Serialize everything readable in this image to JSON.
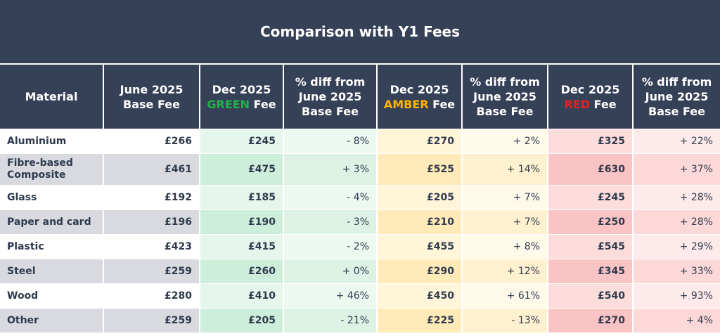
{
  "title": "Comparison with Y1 Fees",
  "headers": {
    "material": "Material",
    "june_base_line1": "June 2025",
    "june_base_line2": "Base Fee",
    "dec_line1": "Dec 2025",
    "green_word": "GREEN",
    "amber_word": "AMBER",
    "red_word": "RED",
    "fee_suffix": " Fee",
    "diff_line1": "% diff from",
    "diff_line2": "June 2025",
    "diff_line3": "Base Fee"
  },
  "colors": {
    "header_bg": "#354157",
    "green": "#22b14c",
    "amber": "#ffb400",
    "red": "#e8201e"
  },
  "rows": [
    {
      "material": "Aluminium",
      "base": "£266",
      "green": "£245",
      "green_diff": "- 8%",
      "amber": "£270",
      "amber_diff": "+ 2%",
      "red": "£325",
      "red_diff": "+ 22%"
    },
    {
      "material": "Fibre-based Composite",
      "base": "£461",
      "green": "£475",
      "green_diff": "+ 3%",
      "amber": "£525",
      "amber_diff": "+ 14%",
      "red": "£630",
      "red_diff": "+ 37%"
    },
    {
      "material": "Glass",
      "base": "£192",
      "green": "£185",
      "green_diff": "- 4%",
      "amber": "£205",
      "amber_diff": "+ 7%",
      "red": "£245",
      "red_diff": "+ 28%"
    },
    {
      "material": "Paper and card",
      "base": "£196",
      "green": "£190",
      "green_diff": "- 3%",
      "amber": "£210",
      "amber_diff": "+ 7%",
      "red": "£250",
      "red_diff": "+ 28%"
    },
    {
      "material": "Plastic",
      "base": "£423",
      "green": "£415",
      "green_diff": "- 2%",
      "amber": "£455",
      "amber_diff": "+ 8%",
      "red": "£545",
      "red_diff": "+ 29%"
    },
    {
      "material": "Steel",
      "base": "£259",
      "green": "£260",
      "green_diff": "+ 0%",
      "amber": "£290",
      "amber_diff": "+ 12%",
      "red": "£345",
      "red_diff": "+ 33%"
    },
    {
      "material": "Wood",
      "base": "£280",
      "green": "£410",
      "green_diff": "+ 46%",
      "amber": "£450",
      "amber_diff": "+ 61%",
      "red": "£540",
      "red_diff": "+ 93%"
    },
    {
      "material": "Other",
      "base": "£259",
      "green": "£205",
      "green_diff": "- 21%",
      "amber": "£225",
      "amber_diff": "- 13%",
      "red": "£270",
      "red_diff": "+ 4%"
    }
  ]
}
